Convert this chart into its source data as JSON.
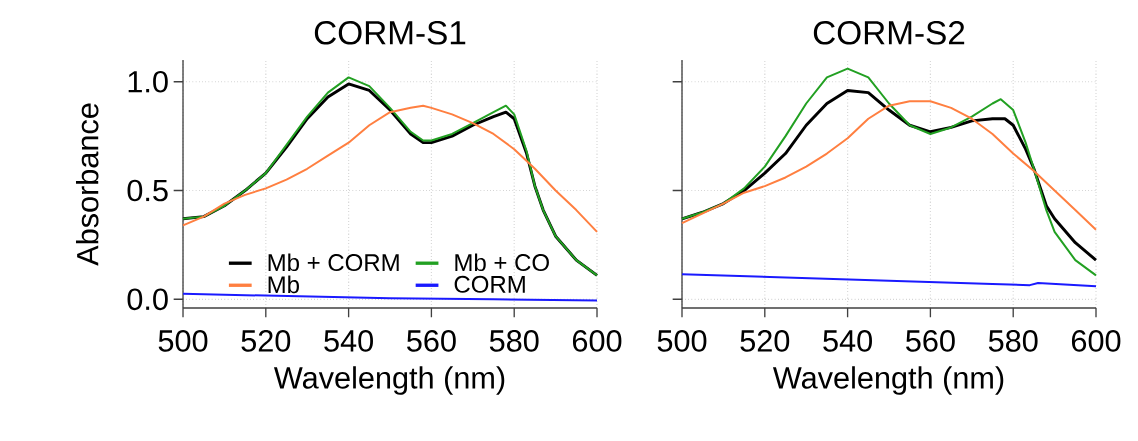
{
  "chart_data": [
    {
      "type": "line",
      "title": "CORM-S1",
      "xlabel": "Wavelength (nm)",
      "ylabel": "Absorbance",
      "xlim": [
        500,
        600
      ],
      "ylim": [
        -0.04,
        1.1
      ],
      "xticks": [
        500,
        520,
        540,
        560,
        580,
        600
      ],
      "yticks": [
        {
          "value": 0,
          "label": "0.0"
        },
        {
          "value": 0.5,
          "label": "0.5"
        },
        {
          "value": 1,
          "label": "1.0"
        }
      ],
      "grid": true,
      "legend": "bottom",
      "line_style": "solid",
      "marker": "none",
      "series": [
        {
          "name": "Mb + CORM",
          "color": "#000000",
          "x": [
            500,
            505,
            510,
            515,
            520,
            525,
            530,
            535,
            540,
            545,
            550,
            555,
            558,
            560,
            565,
            570,
            575,
            578,
            580,
            583,
            585,
            587,
            590,
            595,
            600
          ],
          "values": [
            0.37,
            0.38,
            0.43,
            0.5,
            0.58,
            0.7,
            0.83,
            0.93,
            0.99,
            0.96,
            0.87,
            0.76,
            0.72,
            0.72,
            0.75,
            0.8,
            0.84,
            0.86,
            0.83,
            0.67,
            0.52,
            0.41,
            0.29,
            0.18,
            0.11
          ]
        },
        {
          "name": "Mb + CO",
          "color": "#22a022",
          "x": [
            500,
            505,
            510,
            515,
            520,
            525,
            530,
            535,
            540,
            545,
            550,
            555,
            558,
            560,
            565,
            570,
            575,
            578,
            580,
            583,
            585,
            587,
            590,
            595,
            600
          ],
          "values": [
            0.37,
            0.38,
            0.43,
            0.5,
            0.58,
            0.71,
            0.84,
            0.95,
            1.02,
            0.98,
            0.88,
            0.77,
            0.73,
            0.73,
            0.76,
            0.81,
            0.86,
            0.89,
            0.85,
            0.68,
            0.52,
            0.41,
            0.29,
            0.18,
            0.11
          ]
        },
        {
          "name": "Mb",
          "color": "#ff7f40",
          "x": [
            500,
            505,
            510,
            515,
            520,
            525,
            530,
            535,
            540,
            545,
            550,
            555,
            558,
            560,
            565,
            570,
            575,
            580,
            585,
            590,
            595,
            600
          ],
          "values": [
            0.34,
            0.38,
            0.44,
            0.48,
            0.51,
            0.55,
            0.6,
            0.66,
            0.72,
            0.8,
            0.86,
            0.88,
            0.89,
            0.88,
            0.85,
            0.81,
            0.76,
            0.69,
            0.6,
            0.5,
            0.41,
            0.31
          ]
        },
        {
          "name": "CORM",
          "color": "#1a1aff",
          "x": [
            500,
            525,
            550,
            575,
            600
          ],
          "values": [
            0.025,
            0.015,
            0.005,
            0.0,
            -0.005
          ]
        }
      ]
    },
    {
      "type": "line",
      "title": "CORM-S2",
      "xlabel": "Wavelength (nm)",
      "xlim": [
        500,
        600
      ],
      "ylim": [
        -0.04,
        1.1
      ],
      "xticks": [
        500,
        520,
        540,
        560,
        580,
        600
      ],
      "yticks": [
        {
          "value": 0,
          "label": null
        },
        {
          "value": 0.5,
          "label": null
        },
        {
          "value": 1,
          "label": null
        }
      ],
      "tick_labels": "x",
      "grid": true,
      "line_style": "solid",
      "marker": "none",
      "series": [
        {
          "color": "#000000",
          "x": [
            500,
            505,
            510,
            515,
            520,
            525,
            530,
            535,
            540,
            545,
            550,
            555,
            560,
            565,
            570,
            575,
            578,
            580,
            583,
            585,
            588,
            590,
            595,
            600
          ],
          "values": [
            0.37,
            0.4,
            0.44,
            0.5,
            0.58,
            0.67,
            0.8,
            0.9,
            0.96,
            0.95,
            0.87,
            0.8,
            0.77,
            0.79,
            0.82,
            0.83,
            0.83,
            0.8,
            0.69,
            0.6,
            0.43,
            0.37,
            0.26,
            0.18
          ]
        },
        {
          "color": "#22a022",
          "x": [
            500,
            505,
            510,
            515,
            520,
            525,
            530,
            535,
            540,
            545,
            550,
            555,
            560,
            565,
            570,
            575,
            577,
            580,
            583,
            585,
            588,
            590,
            595,
            600
          ],
          "values": [
            0.37,
            0.4,
            0.44,
            0.51,
            0.61,
            0.75,
            0.9,
            1.02,
            1.06,
            1.02,
            0.9,
            0.8,
            0.76,
            0.79,
            0.84,
            0.9,
            0.92,
            0.87,
            0.72,
            0.6,
            0.41,
            0.31,
            0.18,
            0.11
          ]
        },
        {
          "color": "#ff7f40",
          "x": [
            500,
            510,
            515,
            520,
            525,
            530,
            535,
            540,
            545,
            550,
            555,
            558,
            560,
            565,
            570,
            575,
            580,
            585,
            590,
            595,
            600
          ],
          "values": [
            0.35,
            0.44,
            0.49,
            0.52,
            0.56,
            0.61,
            0.67,
            0.74,
            0.83,
            0.89,
            0.91,
            0.91,
            0.91,
            0.88,
            0.83,
            0.76,
            0.67,
            0.59,
            0.5,
            0.41,
            0.32
          ]
        },
        {
          "color": "#1a1aff",
          "x": [
            500,
            525,
            550,
            575,
            584,
            586,
            600
          ],
          "values": [
            0.115,
            0.1,
            0.085,
            0.07,
            0.065,
            0.075,
            0.06
          ]
        }
      ]
    }
  ]
}
